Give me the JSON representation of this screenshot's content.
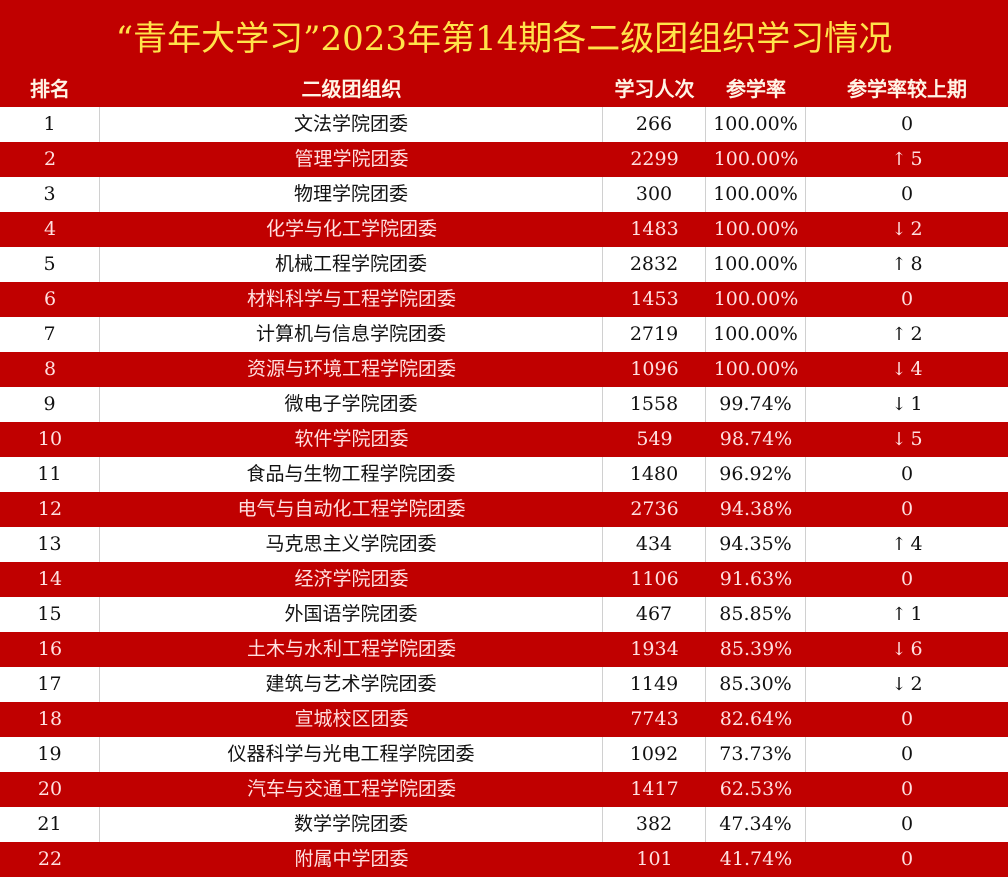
{
  "title": "“青年大学习”2023年第14期各二级团组织学习情况",
  "colors": {
    "red": "#c00000",
    "title_yellow": "#ffe34a"
  },
  "headers": [
    "排名",
    "二级团组织",
    "学习人次",
    "参学率",
    "参学率较上期"
  ],
  "rows": [
    {
      "rank": "1",
      "org": "文法学院团委",
      "count": "266",
      "rate": "100.00%",
      "dir": "",
      "change": "0"
    },
    {
      "rank": "2",
      "org": "管理学院团委",
      "count": "2299",
      "rate": "100.00%",
      "dir": "up",
      "change": "5"
    },
    {
      "rank": "3",
      "org": "物理学院团委",
      "count": "300",
      "rate": "100.00%",
      "dir": "",
      "change": "0"
    },
    {
      "rank": "4",
      "org": "化学与化工学院团委",
      "count": "1483",
      "rate": "100.00%",
      "dir": "down",
      "change": "2"
    },
    {
      "rank": "5",
      "org": "机械工程学院团委",
      "count": "2832",
      "rate": "100.00%",
      "dir": "up",
      "change": "8"
    },
    {
      "rank": "6",
      "org": "材料科学与工程学院团委",
      "count": "1453",
      "rate": "100.00%",
      "dir": "",
      "change": "0"
    },
    {
      "rank": "7",
      "org": "计算机与信息学院团委",
      "count": "2719",
      "rate": "100.00%",
      "dir": "up",
      "change": "2"
    },
    {
      "rank": "8",
      "org": "资源与环境工程学院团委",
      "count": "1096",
      "rate": "100.00%",
      "dir": "down",
      "change": "4"
    },
    {
      "rank": "9",
      "org": "微电子学院团委",
      "count": "1558",
      "rate": "99.74%",
      "dir": "down",
      "change": "1"
    },
    {
      "rank": "10",
      "org": "软件学院团委",
      "count": "549",
      "rate": "98.74%",
      "dir": "down",
      "change": "5"
    },
    {
      "rank": "11",
      "org": "食品与生物工程学院团委",
      "count": "1480",
      "rate": "96.92%",
      "dir": "",
      "change": "0"
    },
    {
      "rank": "12",
      "org": "电气与自动化工程学院团委",
      "count": "2736",
      "rate": "94.38%",
      "dir": "",
      "change": "0"
    },
    {
      "rank": "13",
      "org": "马克思主义学院团委",
      "count": "434",
      "rate": "94.35%",
      "dir": "up",
      "change": "4"
    },
    {
      "rank": "14",
      "org": "经济学院团委",
      "count": "1106",
      "rate": "91.63%",
      "dir": "",
      "change": "0"
    },
    {
      "rank": "15",
      "org": "外国语学院团委",
      "count": "467",
      "rate": "85.85%",
      "dir": "up",
      "change": "1"
    },
    {
      "rank": "16",
      "org": "土木与水利工程学院团委",
      "count": "1934",
      "rate": "85.39%",
      "dir": "down",
      "change": "6"
    },
    {
      "rank": "17",
      "org": "建筑与艺术学院团委",
      "count": "1149",
      "rate": "85.30%",
      "dir": "down",
      "change": "2"
    },
    {
      "rank": "18",
      "org": "宣城校区团委",
      "count": "7743",
      "rate": "82.64%",
      "dir": "",
      "change": "0"
    },
    {
      "rank": "19",
      "org": "仪器科学与光电工程学院团委",
      "count": "1092",
      "rate": "73.73%",
      "dir": "",
      "change": "0"
    },
    {
      "rank": "20",
      "org": "汽车与交通工程学院团委",
      "count": "1417",
      "rate": "62.53%",
      "dir": "",
      "change": "0"
    },
    {
      "rank": "21",
      "org": "数学学院团委",
      "count": "382",
      "rate": "47.34%",
      "dir": "",
      "change": "0"
    },
    {
      "rank": "22",
      "org": "附属中学团委",
      "count": "101",
      "rate": "41.74%",
      "dir": "",
      "change": "0"
    }
  ]
}
